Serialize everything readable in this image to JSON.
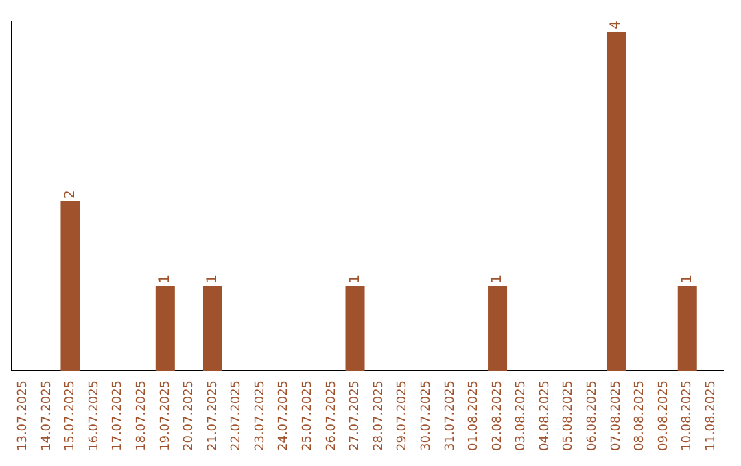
{
  "chart_data": {
    "type": "bar",
    "categories": [
      "13.07.2025",
      "14.07.2025",
      "15.07.2025",
      "16.07.2025",
      "17.07.2025",
      "18.07.2025",
      "19.07.2025",
      "20.07.2025",
      "21.07.2025",
      "22.07.2025",
      "23.07.2025",
      "24.07.2025",
      "25.07.2025",
      "26.07.2025",
      "27.07.2025",
      "28.07.2025",
      "29.07.2025",
      "30.07.2025",
      "31.07.2025",
      "01.08.2025",
      "02.08.2025",
      "03.08.2025",
      "04.08.2025",
      "05.08.2025",
      "06.08.2025",
      "07.08.2025",
      "08.08.2025",
      "09.08.2025",
      "10.08.2025",
      "11.08.2025"
    ],
    "values": [
      0,
      0,
      2,
      0,
      0,
      0,
      1,
      0,
      1,
      0,
      0,
      0,
      0,
      0,
      1,
      0,
      0,
      0,
      0,
      0,
      1,
      0,
      0,
      0,
      0,
      4,
      0,
      0,
      1,
      0
    ],
    "value_labels": [
      null,
      null,
      "2",
      null,
      null,
      null,
      "1",
      null,
      "1",
      null,
      null,
      null,
      null,
      null,
      "1",
      null,
      null,
      null,
      null,
      null,
      "1",
      null,
      null,
      null,
      null,
      "4",
      null,
      null,
      "1",
      null
    ],
    "color": "#a0522d",
    "tick_labels": "x"
  }
}
